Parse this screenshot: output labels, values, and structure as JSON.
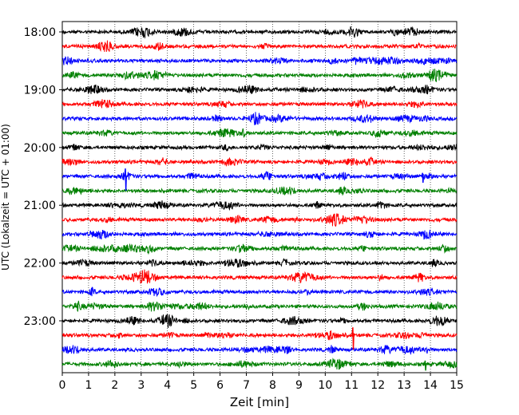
{
  "chart_data": {
    "type": "line",
    "title": "",
    "xlabel": "Zeit  [min]",
    "ylabel": "UTC (Lokalzeit = UTC + 01:00)",
    "xlim": [
      0,
      15
    ],
    "x_ticks": [
      0,
      1,
      2,
      3,
      4,
      5,
      6,
      7,
      8,
      9,
      10,
      11,
      12,
      13,
      14,
      15
    ],
    "x_tick_labels": [
      "0",
      "1",
      "2",
      "3",
      "4",
      "5",
      "6",
      "7",
      "8",
      "9",
      "10",
      "11",
      "12",
      "13",
      "14",
      "15"
    ],
    "y_ticks": [
      "18:00",
      "19:00",
      "20:00",
      "21:00",
      "22:00",
      "23:00"
    ],
    "trace_start": "18:00",
    "trace_interval_min": 15,
    "trace_count": 24,
    "trace_colors": [
      "#000000",
      "#ff0000",
      "#0000ff",
      "#008000"
    ],
    "grid": "vertical dotted",
    "spikes": [
      {
        "start": "20:30",
        "minute": 2.4,
        "amplitude": "large",
        "color": "#0000ff"
      },
      {
        "start": "23:15",
        "minute": 11.05,
        "amplitude": "large",
        "color": "#ff0000"
      },
      {
        "start": "23:45",
        "minute": 13.8,
        "amplitude": "small",
        "color": "#008000"
      },
      {
        "start": "20:30",
        "minute": 13.7,
        "amplitude": "small",
        "color": "#0000ff"
      }
    ]
  }
}
